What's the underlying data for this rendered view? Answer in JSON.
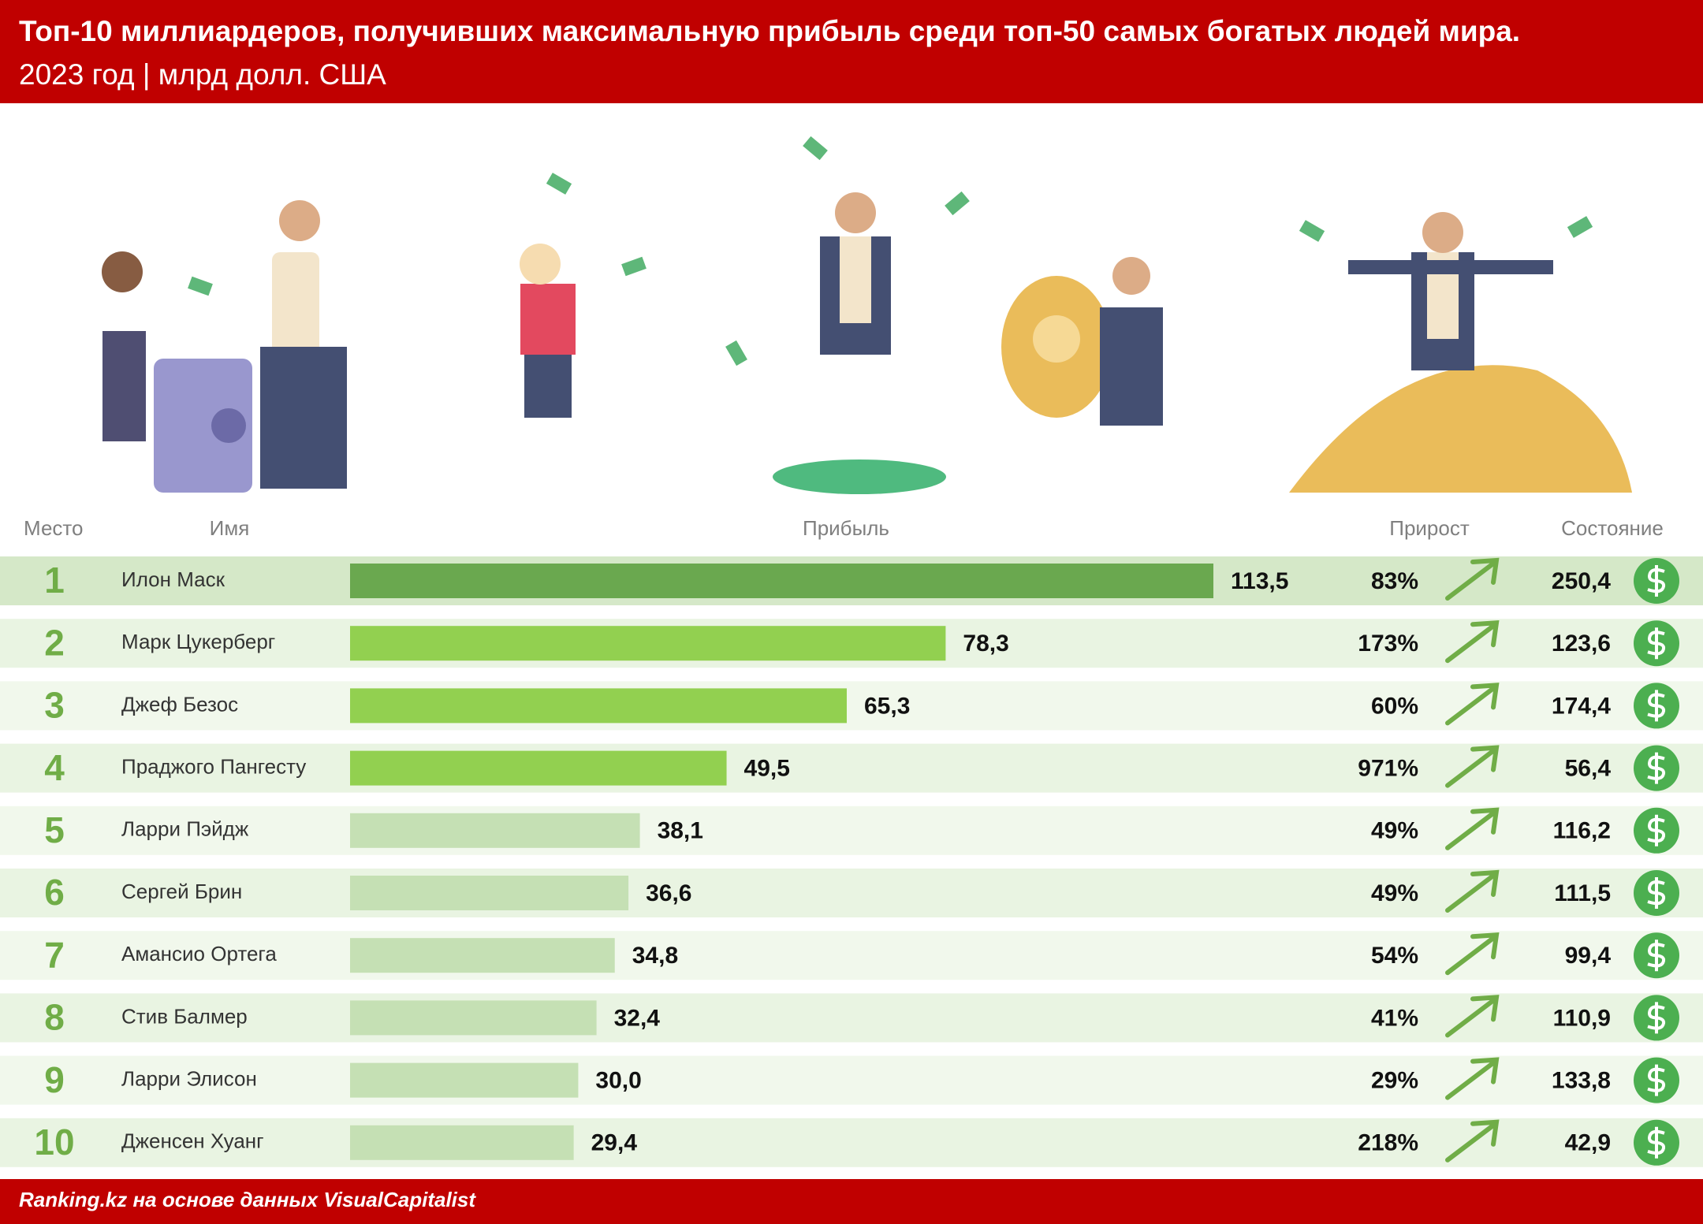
{
  "chart_data": {
    "type": "bar",
    "title": "Топ-10 миллиардеров, получивших максимальную прибыль среди топ-50 самых богатых людей мира.",
    "subtitle": "2023 год | млрд долл. США",
    "source": "Ranking.kz на основе данных VisualCapitalist",
    "ranks_label": "Место",
    "ranks": [
      1,
      2,
      3,
      4,
      5,
      6,
      7,
      8,
      9,
      10
    ],
    "categories_label": "Имя",
    "categories": [
      "Илон Маск",
      "Марк Цукерберг",
      "Джеф Безос",
      "Праджого Пангесту",
      "Ларри Пэйдж",
      "Сергей Брин",
      "Амансио Ортега",
      "Стив Балмер",
      "Ларри Элисон",
      "Дженсен Хуанг"
    ],
    "series": [
      {
        "name": "Прибыль",
        "values": [
          113.5,
          78.3,
          65.3,
          49.5,
          38.1,
          36.6,
          34.8,
          32.4,
          30.0,
          29.4
        ],
        "value_labels": [
          "113,5",
          "78,3",
          "65,3",
          "49,5",
          "38,1",
          "36,6",
          "34,8",
          "32,4",
          "30,0",
          "29,4"
        ],
        "colors": [
          "#6aa84f",
          "#92d050",
          "#92d050",
          "#92d050",
          "#c5e0b4",
          "#c5e0b4",
          "#c5e0b4",
          "#c5e0b4",
          "#c5e0b4",
          "#c5e0b4"
        ]
      }
    ],
    "growth": {
      "name": "Прирост",
      "values": [
        83,
        173,
        60,
        971,
        49,
        49,
        54,
        41,
        29,
        218
      ],
      "value_labels": [
        "83%",
        "173%",
        "60%",
        "971%",
        "49%",
        "49%",
        "54%",
        "41%",
        "29%",
        "218%"
      ]
    },
    "wealth": {
      "name": "Состояние",
      "values": [
        250.4,
        123.6,
        174.4,
        56.4,
        116.2,
        111.5,
        99.4,
        110.9,
        133.8,
        42.9
      ],
      "value_labels": [
        "250,4",
        "123,6",
        "174,4",
        "56,4",
        "116,2",
        "111,5",
        "99,4",
        "110,9",
        "133,8",
        "42,9"
      ]
    },
    "xlim": [
      0,
      113.5
    ]
  }
}
